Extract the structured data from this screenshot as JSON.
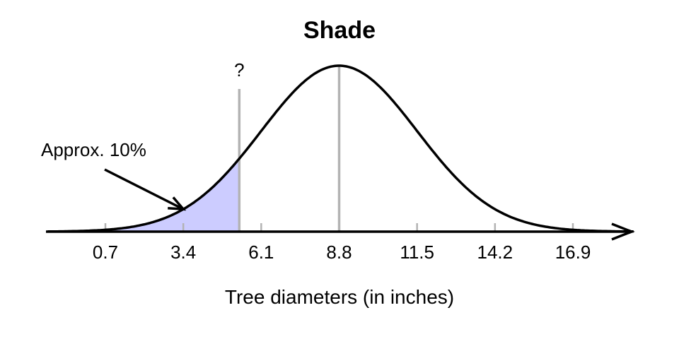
{
  "chart_data": {
    "type": "area",
    "title": "Shade",
    "xlabel": "Tree diameters (in inches)",
    "ylabel": "",
    "distribution": {
      "kind": "normal",
      "mean": 8.8,
      "sd": 2.7
    },
    "xlim": [
      -1.3,
      19.0
    ],
    "x_ticks": [
      0.7,
      3.4,
      6.1,
      8.8,
      11.5,
      14.2,
      16.9
    ],
    "tick_labels": [
      "0.7",
      "3.4",
      "6.1",
      "8.8",
      "11.5",
      "14.2",
      "16.9"
    ],
    "shaded_region": {
      "from": -1.3,
      "to": 5.34,
      "fill": "#ccccff"
    },
    "unknown_line": {
      "x": 5.34,
      "label": "?"
    },
    "mean_line": {
      "x": 8.8
    },
    "annotation": {
      "text": "Approx. 10%",
      "arrow_to_x": 3.4
    },
    "colors": {
      "curve": "#000000",
      "reference_lines": "#b3b3b3",
      "shade": "#ccccff"
    }
  }
}
